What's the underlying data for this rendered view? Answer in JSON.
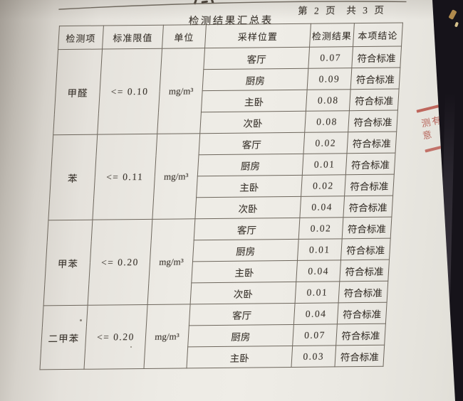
{
  "page": {
    "page_indicator": "第 2 页  共 3 页",
    "table_title": "检测结果汇总表"
  },
  "table": {
    "headers": [
      "检测项",
      "标准限值",
      "单位",
      "采样位置",
      "检测结果",
      "本项结论"
    ],
    "groups": [
      {
        "item": "甲醛",
        "limit": "<= 0.10",
        "unit": "mg/m³",
        "rows": [
          {
            "location": "客厅",
            "result": "0.07",
            "conclusion": "符合标准"
          },
          {
            "location": "厨房",
            "result": "0.09",
            "conclusion": "符合标准"
          },
          {
            "location": "主卧",
            "result": "0.08",
            "conclusion": "符合标准"
          },
          {
            "location": "次卧",
            "result": "0.08",
            "conclusion": "符合标准"
          }
        ]
      },
      {
        "item": "苯",
        "limit": "<= 0.11",
        "unit": "mg/m³",
        "rows": [
          {
            "location": "客厅",
            "result": "0.02",
            "conclusion": "符合标准"
          },
          {
            "location": "厨房",
            "result": "0.01",
            "conclusion": "符合标准"
          },
          {
            "location": "主卧",
            "result": "0.02",
            "conclusion": "符合标准"
          },
          {
            "location": "次卧",
            "result": "0.04",
            "conclusion": "符合标准"
          }
        ]
      },
      {
        "item": "甲苯",
        "limit": "<= 0.20",
        "unit": "mg/m³",
        "rows": [
          {
            "location": "客厅",
            "result": "0.02",
            "conclusion": "符合标准"
          },
          {
            "location": "厨房",
            "result": "0.01",
            "conclusion": "符合标准"
          },
          {
            "location": "主卧",
            "result": "0.04",
            "conclusion": "符合标准"
          },
          {
            "location": "次卧",
            "result": "0.01",
            "conclusion": "符合标准"
          }
        ]
      },
      {
        "item": "二甲苯",
        "limit": "<= 0.20",
        "unit": "mg/m³",
        "rows": [
          {
            "location": "客厅",
            "result": "0.04",
            "conclusion": "符合标准"
          },
          {
            "location": "厨房",
            "result": "0.07",
            "conclusion": "符合标准"
          },
          {
            "location": "主卧",
            "result": "0.03",
            "conclusion": "符合标准"
          }
        ]
      }
    ]
  },
  "stamp": {
    "line1": "测有",
    "line2": "意",
    "color": "#b24237"
  },
  "colors": {
    "paper": "#edebe5",
    "background": "#16131a",
    "grid_line": "#6e675d",
    "text": "#38322b",
    "stamp_red": "#b24237"
  }
}
